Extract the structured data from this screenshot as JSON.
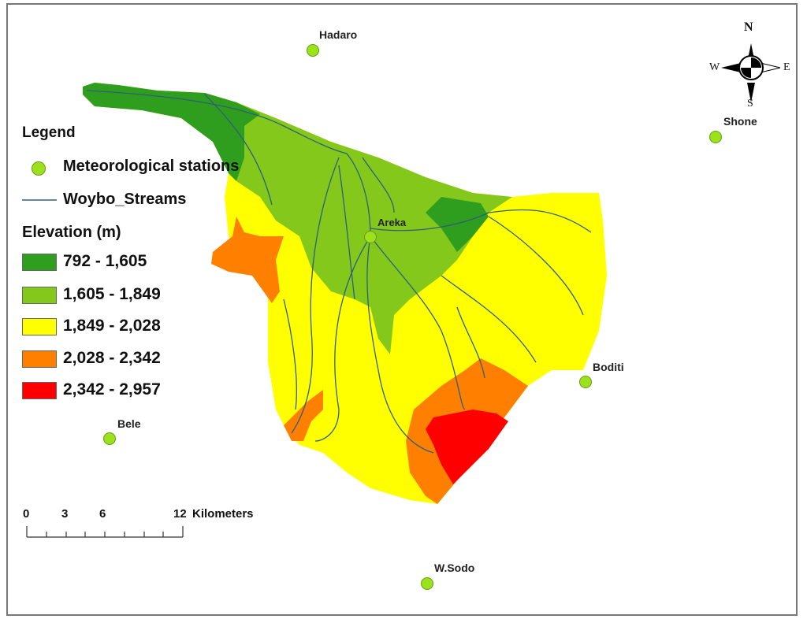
{
  "legend": {
    "title": "Legend",
    "stations_label": "Meteorological stations",
    "streams_label": "Woybo_Streams",
    "elevation_title": "Elevation (m)",
    "classes": [
      {
        "label": "792 - 1,605",
        "color": "#2f9e1e"
      },
      {
        "label": "1,605 - 1,849",
        "color": "#84c81c"
      },
      {
        "label": "1,849 - 2,028",
        "color": "#ffff00"
      },
      {
        "label": "2,028 - 2,342",
        "color": "#ff8000"
      },
      {
        "label": "2,342 - 2,957",
        "color": "#ff0000"
      }
    ]
  },
  "stations": [
    {
      "name": "Hadaro"
    },
    {
      "name": "Shone"
    },
    {
      "name": "Areka"
    },
    {
      "name": "Boditi"
    },
    {
      "name": "Bele"
    },
    {
      "name": "W.Sodo"
    }
  ],
  "north_arrow": {
    "n": "N",
    "s": "S",
    "e": "E",
    "w": "W"
  },
  "scale_bar": {
    "ticks": [
      "0",
      "3",
      "6",
      "12"
    ],
    "unit": "Kilometers"
  },
  "colors": {
    "station": "#9be21c",
    "stream": "#2f5f7a"
  }
}
